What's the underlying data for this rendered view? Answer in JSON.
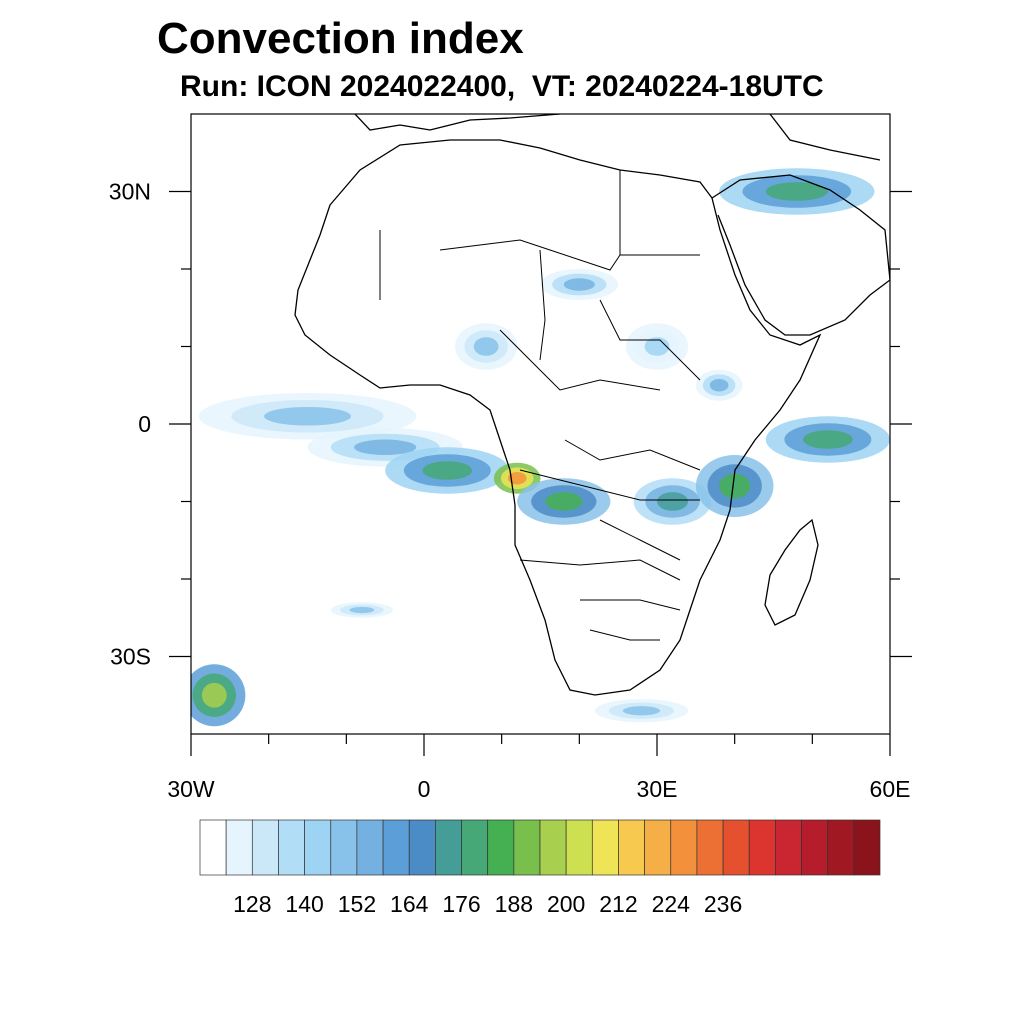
{
  "title": "Convection index",
  "subtitle": "Run: ICON 2024022400,  VT: 20240224-18UTC",
  "map": {
    "region": "Africa and surrounding oceans",
    "lon_range": [
      -30,
      60
    ],
    "lat_range": [
      -40,
      40
    ],
    "x_ticks": [
      {
        "lon": -30,
        "label": "30W"
      },
      {
        "lon": 0,
        "label": "0"
      },
      {
        "lon": 30,
        "label": "30E"
      },
      {
        "lon": 60,
        "label": "60E"
      }
    ],
    "y_ticks": [
      {
        "lat": 30,
        "label": "30N"
      },
      {
        "lat": 0,
        "label": "0"
      },
      {
        "lat": -30,
        "label": "30S"
      }
    ],
    "minor_lon": [
      -20,
      -10,
      10,
      20,
      40,
      50
    ],
    "minor_lat": [
      20,
      10,
      -10,
      -20
    ]
  },
  "colorbar": {
    "labels": [
      "128",
      "140",
      "152",
      "164",
      "176",
      "188",
      "200",
      "212",
      "224",
      "236"
    ],
    "colors": [
      "#ffffff",
      "#e5f4fd",
      "#cbe8f9",
      "#b2ddf6",
      "#9dd3f3",
      "#88c2ea",
      "#74b1e1",
      "#5c9ed7",
      "#4b8cc6",
      "#459d98",
      "#45a876",
      "#45b052",
      "#79bf4c",
      "#a8cf4d",
      "#cde04f",
      "#efe455",
      "#f7c94e",
      "#f6ae46",
      "#f3903c",
      "#ec7033",
      "#e5502e",
      "#dc3530",
      "#c92632",
      "#b51d2c",
      "#9f1822",
      "#8b141c"
    ]
  },
  "fields": [
    {
      "lon": -15,
      "lat": 1,
      "rx": 14,
      "ry": 3,
      "level": 5
    },
    {
      "lon": -5,
      "lat": -3,
      "rx": 10,
      "ry": 2.5,
      "level": 6
    },
    {
      "lon": 3,
      "lat": -6,
      "rx": 8,
      "ry": 3,
      "level": 10
    },
    {
      "lon": 12,
      "lat": -7,
      "rx": 3,
      "ry": 2,
      "level": 18
    },
    {
      "lon": 18,
      "lat": -10,
      "rx": 6,
      "ry": 3,
      "level": 11
    },
    {
      "lon": 32,
      "lat": -10,
      "rx": 5,
      "ry": 3,
      "level": 9
    },
    {
      "lon": 40,
      "lat": -8,
      "rx": 5,
      "ry": 4,
      "level": 11
    },
    {
      "lon": 52,
      "lat": -2,
      "rx": 8,
      "ry": 3,
      "level": 10
    },
    {
      "lon": 48,
      "lat": 30,
      "rx": 10,
      "ry": 3,
      "level": 10
    },
    {
      "lon": 20,
      "lat": 18,
      "rx": 5,
      "ry": 2,
      "level": 6
    },
    {
      "lon": -27,
      "lat": -35,
      "rx": 4,
      "ry": 4,
      "level": 13
    },
    {
      "lon": -8,
      "lat": -24,
      "rx": 4,
      "ry": 1,
      "level": 5
    },
    {
      "lon": 28,
      "lat": -37,
      "rx": 6,
      "ry": 1.5,
      "level": 5
    },
    {
      "lon": 8,
      "lat": 10,
      "rx": 4,
      "ry": 3,
      "level": 5
    },
    {
      "lon": 30,
      "lat": 10,
      "rx": 4,
      "ry": 3,
      "level": 4
    },
    {
      "lon": 38,
      "lat": 5,
      "rx": 3,
      "ry": 2,
      "level": 6
    }
  ]
}
